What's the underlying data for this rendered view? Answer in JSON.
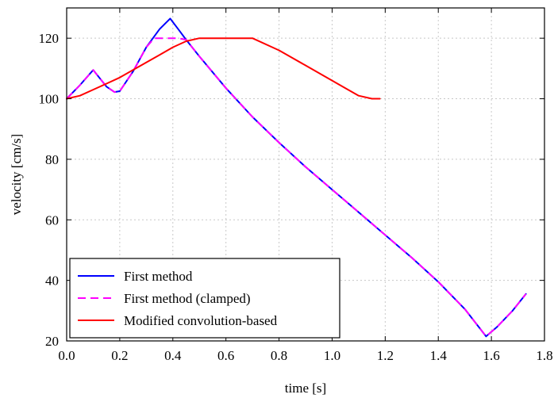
{
  "chart_data": {
    "type": "line",
    "xlabel": "time [s]",
    "ylabel": "velocity [cm/s]",
    "xlim": [
      0,
      1.8
    ],
    "ylim": [
      20,
      130
    ],
    "xticks": [
      0.0,
      0.2,
      0.4,
      0.6,
      0.8,
      1.0,
      1.2,
      1.4,
      1.6,
      1.8
    ],
    "xtick_labels": [
      "0.0",
      "0.2",
      "0.4",
      "0.6",
      "0.8",
      "1.0",
      "1.2",
      "1.4",
      "1.6",
      "1.8"
    ],
    "yticks": [
      20,
      40,
      60,
      80,
      100,
      120
    ],
    "ytick_labels": [
      "20",
      "40",
      "60",
      "80",
      "100",
      "120"
    ],
    "grid": true,
    "legend_position": "bottom-left",
    "series": [
      {
        "name": "First method",
        "color": "#0000ff",
        "dash": "solid",
        "x": [
          0.0,
          0.05,
          0.1,
          0.15,
          0.18,
          0.2,
          0.25,
          0.3,
          0.35,
          0.39,
          0.42,
          0.45,
          0.5,
          0.6,
          0.7,
          0.8,
          0.9,
          1.0,
          1.1,
          1.2,
          1.3,
          1.4,
          1.5,
          1.58,
          1.62,
          1.68,
          1.73
        ],
        "y": [
          100,
          104.5,
          109.5,
          104,
          102.2,
          102.5,
          109,
          117,
          123,
          126.5,
          123,
          119.5,
          114,
          103.5,
          94,
          85.5,
          77.5,
          70,
          62.5,
          55,
          47.5,
          39.5,
          30.5,
          21.5,
          24.5,
          30,
          35.5
        ]
      },
      {
        "name": "First method (clamped)",
        "color": "#ff00ff",
        "dash": "dashed",
        "x": [
          0.0,
          0.05,
          0.1,
          0.15,
          0.18,
          0.2,
          0.25,
          0.3,
          0.33,
          0.36,
          0.42,
          0.45,
          0.5,
          0.6,
          0.7,
          0.8,
          0.9,
          1.0,
          1.1,
          1.2,
          1.3,
          1.4,
          1.5,
          1.58,
          1.62,
          1.68,
          1.73
        ],
        "y": [
          100,
          104.5,
          109.5,
          104,
          102.2,
          102.5,
          109,
          117,
          120,
          120,
          120,
          119.5,
          114,
          103.5,
          94,
          85.5,
          77.5,
          70,
          62.5,
          55,
          47.5,
          39.5,
          30.5,
          21.5,
          24.5,
          30,
          35.5
        ]
      },
      {
        "name": "Modified convolution-based",
        "color": "#ff0000",
        "dash": "solid",
        "x": [
          0.0,
          0.05,
          0.1,
          0.15,
          0.2,
          0.25,
          0.3,
          0.35,
          0.4,
          0.45,
          0.5,
          0.6,
          0.7,
          0.8,
          0.9,
          1.0,
          1.05,
          1.1,
          1.15,
          1.18
        ],
        "y": [
          100,
          101,
          103,
          105,
          107,
          109.5,
          112,
          114.5,
          117,
          119,
          120,
          120,
          120,
          116,
          111,
          106,
          103.5,
          101,
          100,
          100
        ]
      }
    ]
  }
}
